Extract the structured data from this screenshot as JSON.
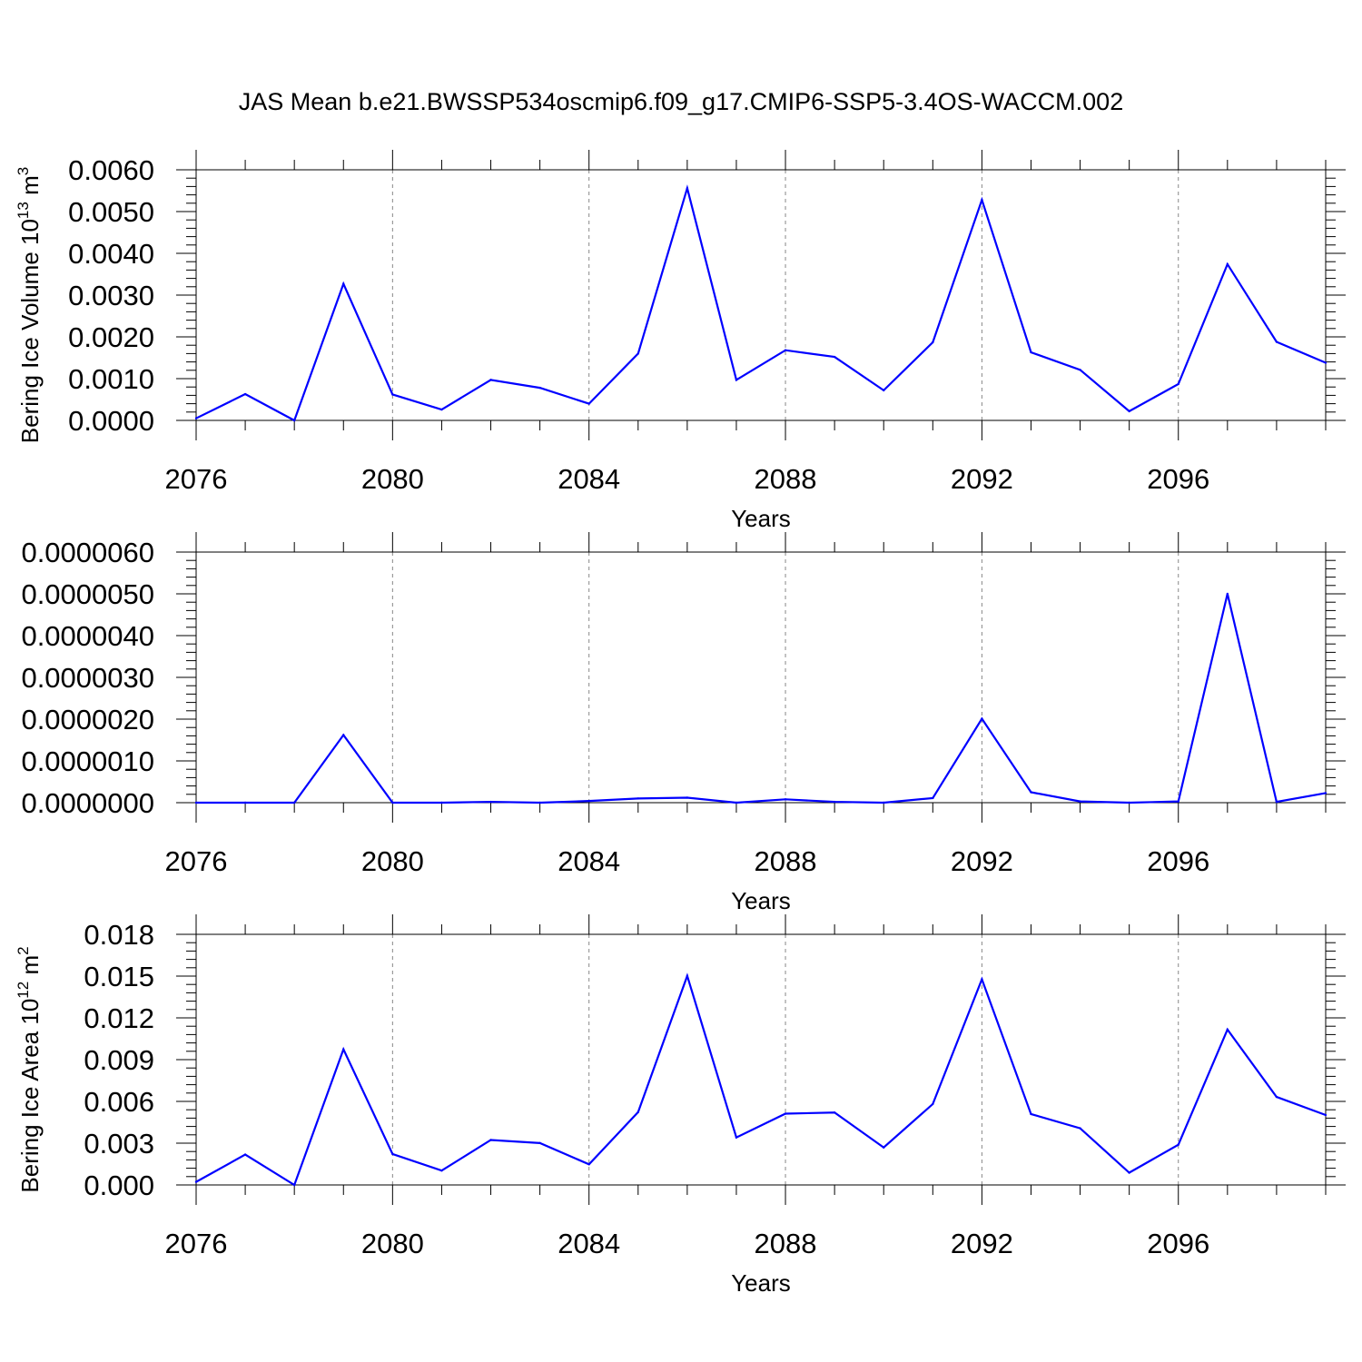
{
  "title": "JAS Mean b.e21.BWSSP534oscmip6.f09_g17.CMIP6-SSP5-3.4OS-WACCM.002",
  "colors": {
    "line": "#0000ff",
    "grid": "#888888",
    "axis": "#000000"
  },
  "chart_data": [
    {
      "type": "line",
      "ylabel_main": "Bering Ice Volume 10",
      "ylabel_exp": "13",
      "ylabel_unit": " m",
      "ylabel_unit_exp": "3",
      "xlabel": "Years",
      "xlim": [
        2076,
        2099
      ],
      "ylim": [
        0,
        0.006
      ],
      "xticks": [
        2076,
        2080,
        2084,
        2088,
        2092,
        2096
      ],
      "xtick_labels": [
        "2076",
        "2080",
        "2084",
        "2088",
        "2092",
        "2096"
      ],
      "yticks": [
        0,
        0.001,
        0.002,
        0.003,
        0.004,
        0.005,
        0.006
      ],
      "ytick_labels": [
        "0.0000",
        "0.0010",
        "0.0020",
        "0.0030",
        "0.0040",
        "0.0050",
        "0.0060"
      ],
      "x": [
        2076,
        2077,
        2078,
        2079,
        2080,
        2081,
        2082,
        2083,
        2084,
        2085,
        2086,
        2087,
        2088,
        2089,
        2090,
        2091,
        2092,
        2093,
        2094,
        2095,
        2096,
        2097,
        2098,
        2099
      ],
      "values": [
        5e-05,
        0.00063,
        0.0,
        0.00327,
        0.00062,
        0.00026,
        0.00097,
        0.00078,
        0.0004,
        0.0016,
        0.00556,
        0.00097,
        0.00168,
        0.00152,
        0.00072,
        0.00187,
        0.00528,
        0.00163,
        0.00121,
        0.00022,
        0.00087,
        0.00374,
        0.00188,
        0.00138
      ]
    },
    {
      "type": "line",
      "ylabel_main": "",
      "ylabel_exp": "",
      "ylabel_unit": "",
      "ylabel_unit_exp": "",
      "xlabel": "Years",
      "xlim": [
        2076,
        2099
      ],
      "ylim": [
        0,
        6e-06
      ],
      "xticks": [
        2076,
        2080,
        2084,
        2088,
        2092,
        2096
      ],
      "xtick_labels": [
        "2076",
        "2080",
        "2084",
        "2088",
        "2092",
        "2096"
      ],
      "yticks": [
        0,
        1e-06,
        2e-06,
        3e-06,
        4e-06,
        5e-06,
        6e-06
      ],
      "ytick_labels": [
        "0.0000000",
        "0.0000010",
        "0.0000020",
        "0.0000030",
        "0.0000040",
        "0.0000050",
        "0.0000060"
      ],
      "x": [
        2076,
        2077,
        2078,
        2079,
        2080,
        2081,
        2082,
        2083,
        2084,
        2085,
        2086,
        2087,
        2088,
        2089,
        2090,
        2091,
        2092,
        2093,
        2094,
        2095,
        2096,
        2097,
        2098,
        2099
      ],
      "values": [
        0.0,
        0.0,
        0.0,
        1.62e-06,
        0.0,
        0.0,
        2e-08,
        0.0,
        4e-08,
        1e-07,
        1.2e-07,
        0.0,
        8e-08,
        2e-08,
        0.0,
        1.1e-07,
        2.01e-06,
        2.5e-07,
        3e-08,
        0.0,
        3e-08,
        5e-06,
        2e-08,
        2.3e-07
      ]
    },
    {
      "type": "line",
      "ylabel_main": "Bering Ice Area 10",
      "ylabel_exp": "12",
      "ylabel_unit": " m",
      "ylabel_unit_exp": "2",
      "xlabel": "Years",
      "xlim": [
        2076,
        2099
      ],
      "ylim": [
        0,
        0.018
      ],
      "xticks": [
        2076,
        2080,
        2084,
        2088,
        2092,
        2096
      ],
      "xtick_labels": [
        "2076",
        "2080",
        "2084",
        "2088",
        "2092",
        "2096"
      ],
      "yticks": [
        0,
        0.003,
        0.006,
        0.009,
        0.012,
        0.015,
        0.018
      ],
      "ytick_labels": [
        "0.000",
        "0.003",
        "0.006",
        "0.009",
        "0.012",
        "0.015",
        "0.018"
      ],
      "x": [
        2076,
        2077,
        2078,
        2079,
        2080,
        2081,
        2082,
        2083,
        2084,
        2085,
        2086,
        2087,
        2088,
        2089,
        2090,
        2091,
        2092,
        2093,
        2094,
        2095,
        2096,
        2097,
        2098,
        2099
      ],
      "values": [
        0.00022,
        0.00218,
        0.0,
        0.00974,
        0.00222,
        0.00103,
        0.00323,
        0.00301,
        0.00148,
        0.00523,
        0.01502,
        0.00341,
        0.00512,
        0.0052,
        0.00269,
        0.00581,
        0.01477,
        0.00509,
        0.00407,
        0.00088,
        0.00289,
        0.01116,
        0.00632,
        0.00502
      ]
    }
  ]
}
